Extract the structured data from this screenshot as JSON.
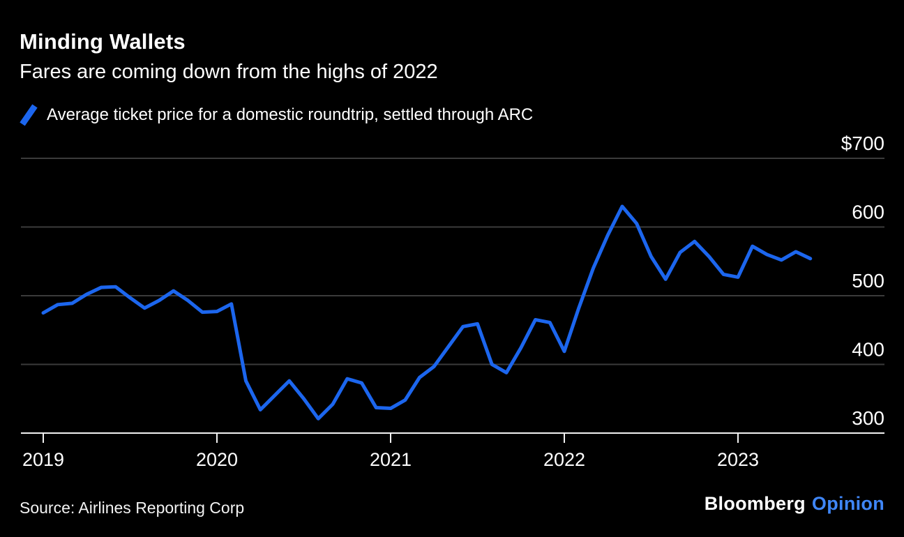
{
  "header": {
    "title": "Minding Wallets",
    "subtitle": "Fares are coming down from the highs of 2022"
  },
  "legend": {
    "label": "Average ticket price for a domestic roundtrip, settled through ARC",
    "marker": "blue-slash"
  },
  "chart_data": {
    "type": "line",
    "title": "Minding Wallets",
    "subtitle": "Fares are coming down from the highs of 2022",
    "frequency": "monthly",
    "x_start": "2019-01",
    "x_end": "2023-06",
    "x": [
      "2019-01",
      "2019-02",
      "2019-03",
      "2019-04",
      "2019-05",
      "2019-06",
      "2019-07",
      "2019-08",
      "2019-09",
      "2019-10",
      "2019-11",
      "2019-12",
      "2020-01",
      "2020-02",
      "2020-03",
      "2020-04",
      "2020-05",
      "2020-06",
      "2020-07",
      "2020-08",
      "2020-09",
      "2020-10",
      "2020-11",
      "2020-12",
      "2021-01",
      "2021-02",
      "2021-03",
      "2021-04",
      "2021-05",
      "2021-06",
      "2021-07",
      "2021-08",
      "2021-09",
      "2021-10",
      "2021-11",
      "2021-12",
      "2022-01",
      "2022-02",
      "2022-03",
      "2022-04",
      "2022-05",
      "2022-06",
      "2022-07",
      "2022-08",
      "2022-09",
      "2022-10",
      "2022-11",
      "2022-12",
      "2023-01",
      "2023-02",
      "2023-03",
      "2023-04",
      "2023-05",
      "2023-06"
    ],
    "series": [
      {
        "name": "Average ticket price for a domestic roundtrip, settled through ARC",
        "values": [
          475,
          487,
          489,
          502,
          512,
          513,
          497,
          482,
          493,
          507,
          493,
          476,
          477,
          488,
          376,
          334,
          355,
          376,
          350,
          321,
          342,
          379,
          373,
          337,
          336,
          348,
          381,
          397,
          426,
          455,
          459,
          400,
          388,
          424,
          465,
          461,
          419,
          482,
          540,
          588,
          630,
          605,
          557,
          524,
          563,
          579,
          557,
          531,
          527,
          572,
          560,
          552,
          564,
          554
        ]
      }
    ],
    "unit": "$",
    "ylim": [
      300,
      700
    ],
    "y_ticks": [
      700,
      600,
      500,
      400,
      300
    ],
    "y_tick_labels": [
      "$700",
      "600",
      "500",
      "400",
      "300"
    ],
    "y_axis_position": "right",
    "x_tick_years": [
      2019,
      2020,
      2021,
      2022,
      2023
    ],
    "x_tick_labels": [
      "2019",
      "2020",
      "2021",
      "2022",
      "2023"
    ],
    "grid": "horizontal",
    "legend_position": "top-left"
  },
  "footer": {
    "source": "Source: Airlines Reporting Corp",
    "brand": "Bloomberg",
    "brand_suffix": "Opinion"
  },
  "colors": {
    "background": "#000000",
    "text": "#ffffff",
    "line": "#1c66ee",
    "grid_line": "#3b3b3b",
    "axis_line": "#f2f2f2",
    "opinion_blue": "#3f86f7"
  }
}
